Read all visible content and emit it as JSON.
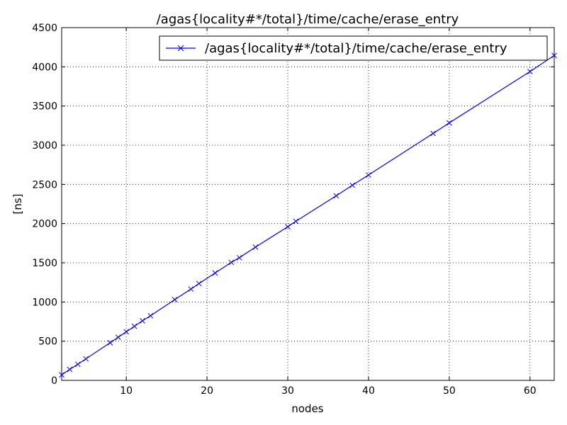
{
  "chart_data": {
    "type": "line",
    "title": "/agas{locality#*/total}/time/cache/erase_entry",
    "xlabel": "nodes",
    "ylabel": "[ns]",
    "xlim": [
      2,
      63
    ],
    "ylim": [
      0,
      4500
    ],
    "xticks": [
      10,
      20,
      30,
      40,
      50,
      60
    ],
    "yticks": [
      0,
      500,
      1000,
      1500,
      2000,
      2500,
      3000,
      3500,
      4000,
      4500
    ],
    "grid": true,
    "legend_position": "top-right",
    "series": [
      {
        "name": "/agas{locality#*/total}/time/cache/erase_entry",
        "color": "#0000ff",
        "marker": "x",
        "x": [
          2,
          3,
          4,
          5,
          8,
          9,
          10,
          11,
          12,
          13,
          16,
          18,
          19,
          21,
          23,
          24,
          26,
          30,
          31,
          36,
          38,
          40,
          48,
          50,
          60,
          63
        ],
        "y": [
          70,
          140,
          205,
          275,
          480,
          550,
          620,
          690,
          760,
          825,
          1030,
          1165,
          1235,
          1370,
          1505,
          1565,
          1700,
          1960,
          2030,
          2355,
          2490,
          2620,
          3150,
          3285,
          3940,
          4145
        ]
      }
    ]
  }
}
